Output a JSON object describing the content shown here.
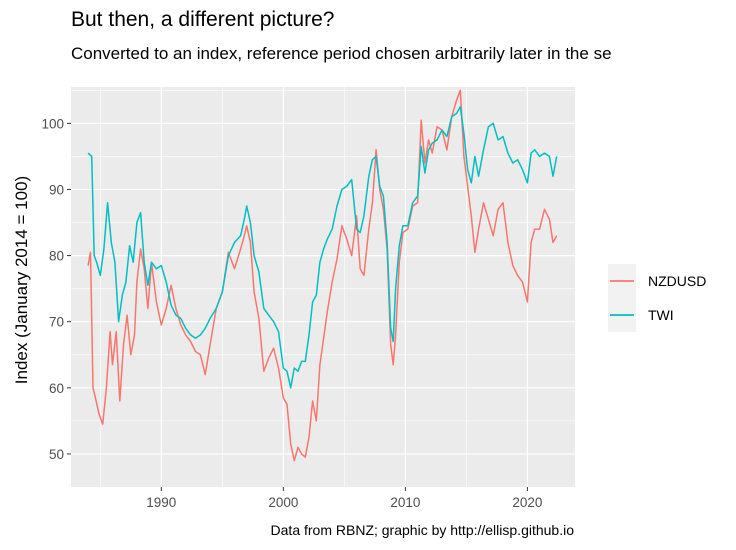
{
  "chart_data": {
    "type": "line",
    "title": "But then, a different picture?",
    "subtitle": "Converted to an index, reference period chosen arbitrarily later in the se",
    "xlabel": "",
    "ylabel": "Index (January 2014 = 100)",
    "caption": "Data from RBNZ; graphic by http://ellisp.github.io",
    "xlim": [
      1982.6,
      2023.9
    ],
    "ylim": [
      45.0,
      105.5
    ],
    "xticks": [
      1990,
      2000,
      2010,
      2020
    ],
    "yticks": [
      50,
      60,
      70,
      80,
      90,
      100
    ],
    "grid": true,
    "legend_position": "right",
    "series": [
      {
        "name": "NZDUSD",
        "color": "#F8766D",
        "x": [
          1984.0,
          1984.2,
          1984.4,
          1984.6,
          1984.9,
          1985.2,
          1985.5,
          1985.8,
          1986.0,
          1986.3,
          1986.6,
          1986.9,
          1987.2,
          1987.5,
          1987.8,
          1988.0,
          1988.3,
          1988.6,
          1988.9,
          1989.2,
          1989.6,
          1990.0,
          1990.4,
          1990.8,
          1991.2,
          1991.6,
          1992.0,
          1992.4,
          1992.8,
          1993.2,
          1993.6,
          1994.0,
          1994.5,
          1995.0,
          1995.5,
          1996.0,
          1996.5,
          1996.8,
          1997.0,
          1997.3,
          1997.6,
          1998.0,
          1998.4,
          1998.8,
          1999.2,
          1999.6,
          2000.0,
          2000.3,
          2000.6,
          2000.9,
          2001.2,
          2001.5,
          2001.8,
          2002.1,
          2002.4,
          2002.7,
          2003.0,
          2003.3,
          2003.6,
          2004.0,
          2004.4,
          2004.8,
          2005.2,
          2005.6,
          2006.0,
          2006.3,
          2006.6,
          2007.0,
          2007.3,
          2007.6,
          2007.9,
          2008.2,
          2008.5,
          2008.8,
          2009.0,
          2009.2,
          2009.5,
          2009.8,
          2010.2,
          2010.6,
          2011.0,
          2011.3,
          2011.6,
          2011.9,
          2012.2,
          2012.6,
          2013.0,
          2013.4,
          2013.8,
          2014.2,
          2014.5,
          2014.8,
          2015.1,
          2015.4,
          2015.7,
          2016.0,
          2016.4,
          2016.8,
          2017.2,
          2017.6,
          2018.0,
          2018.4,
          2018.8,
          2019.2,
          2019.6,
          2020.0,
          2020.3,
          2020.6,
          2021.0,
          2021.4,
          2021.8,
          2022.1,
          2022.4
        ],
        "values": [
          78.5,
          80.5,
          60.0,
          58.5,
          56.0,
          54.5,
          60.0,
          68.5,
          63.5,
          68.5,
          58.0,
          66.5,
          71.0,
          65.0,
          68.0,
          76.0,
          81.0,
          78.0,
          72.0,
          79.0,
          73.0,
          69.5,
          72.0,
          75.5,
          72.0,
          69.5,
          68.0,
          67.0,
          65.5,
          65.0,
          62.0,
          66.5,
          72.0,
          74.5,
          80.5,
          78.0,
          81.0,
          83.0,
          84.5,
          82.0,
          74.5,
          70.5,
          62.5,
          64.5,
          66.0,
          63.0,
          58.5,
          57.5,
          51.5,
          49.0,
          51.0,
          50.0,
          49.5,
          52.5,
          58.0,
          55.0,
          63.5,
          67.5,
          71.5,
          76.0,
          79.5,
          84.5,
          82.5,
          80.0,
          86.0,
          78.0,
          77.0,
          84.0,
          88.0,
          96.0,
          90.0,
          87.0,
          81.0,
          66.5,
          63.5,
          68.0,
          79.0,
          83.5,
          84.0,
          87.5,
          88.0,
          100.5,
          94.0,
          97.5,
          95.5,
          99.5,
          99.0,
          96.0,
          101.0,
          103.5,
          105.0,
          95.0,
          90.5,
          86.0,
          80.5,
          84.0,
          88.0,
          85.5,
          83.0,
          87.0,
          88.0,
          82.0,
          78.5,
          77.0,
          76.0,
          73.0,
          82.0,
          84.0,
          84.0,
          87.0,
          85.5,
          82.0,
          83.0
        ]
      },
      {
        "name": "TWI",
        "color": "#00BFC4",
        "x": [
          1984.0,
          1984.3,
          1984.5,
          1984.7,
          1985.0,
          1985.3,
          1985.6,
          1985.9,
          1986.2,
          1986.5,
          1986.8,
          1987.1,
          1987.4,
          1987.7,
          1988.0,
          1988.3,
          1988.6,
          1988.9,
          1989.2,
          1989.6,
          1990.0,
          1990.4,
          1990.8,
          1991.2,
          1991.6,
          1992.0,
          1992.4,
          1992.8,
          1993.2,
          1993.6,
          1994.0,
          1994.5,
          1995.0,
          1995.5,
          1996.0,
          1996.5,
          1996.8,
          1997.0,
          1997.3,
          1997.6,
          1998.0,
          1998.4,
          1998.8,
          1999.2,
          1999.6,
          2000.0,
          2000.3,
          2000.6,
          2000.9,
          2001.2,
          2001.5,
          2001.8,
          2002.1,
          2002.4,
          2002.7,
          2003.0,
          2003.3,
          2003.6,
          2004.0,
          2004.4,
          2004.8,
          2005.2,
          2005.6,
          2006.0,
          2006.3,
          2006.6,
          2007.0,
          2007.3,
          2007.6,
          2007.9,
          2008.2,
          2008.5,
          2008.8,
          2009.0,
          2009.2,
          2009.5,
          2009.8,
          2010.2,
          2010.6,
          2011.0,
          2011.3,
          2011.6,
          2011.9,
          2012.2,
          2012.6,
          2013.0,
          2013.4,
          2013.8,
          2014.2,
          2014.5,
          2014.8,
          2015.1,
          2015.4,
          2015.7,
          2016.0,
          2016.4,
          2016.8,
          2017.2,
          2017.6,
          2018.0,
          2018.4,
          2018.8,
          2019.2,
          2019.6,
          2020.0,
          2020.3,
          2020.6,
          2021.0,
          2021.4,
          2021.8,
          2022.1,
          2022.4
        ],
        "values": [
          95.5,
          95.0,
          80.0,
          79.0,
          77.0,
          81.0,
          88.0,
          82.0,
          79.0,
          70.0,
          74.0,
          76.0,
          81.5,
          79.0,
          85.0,
          86.5,
          79.0,
          75.5,
          79.0,
          78.0,
          78.5,
          76.0,
          72.5,
          71.0,
          70.5,
          69.0,
          68.0,
          67.5,
          68.0,
          69.0,
          70.5,
          72.0,
          74.5,
          80.0,
          82.0,
          83.0,
          85.5,
          87.5,
          85.0,
          80.0,
          77.5,
          72.0,
          71.0,
          70.0,
          68.5,
          63.0,
          62.5,
          60.0,
          63.0,
          62.5,
          64.0,
          64.0,
          68.0,
          73.0,
          74.0,
          79.0,
          81.0,
          82.5,
          84.0,
          87.5,
          90.0,
          90.5,
          91.5,
          84.0,
          83.5,
          86.0,
          92.0,
          94.5,
          95.0,
          90.5,
          89.0,
          82.0,
          69.0,
          67.0,
          75.0,
          81.5,
          84.5,
          84.5,
          88.0,
          89.0,
          96.5,
          92.5,
          96.0,
          97.0,
          97.5,
          99.0,
          98.0,
          101.0,
          101.5,
          102.5,
          98.5,
          93.0,
          91.0,
          95.0,
          92.0,
          96.0,
          99.5,
          100.0,
          97.5,
          98.0,
          95.5,
          94.0,
          94.5,
          93.0,
          91.0,
          95.5,
          96.0,
          95.0,
          95.5,
          95.0,
          92.0,
          95.0
        ]
      }
    ]
  }
}
